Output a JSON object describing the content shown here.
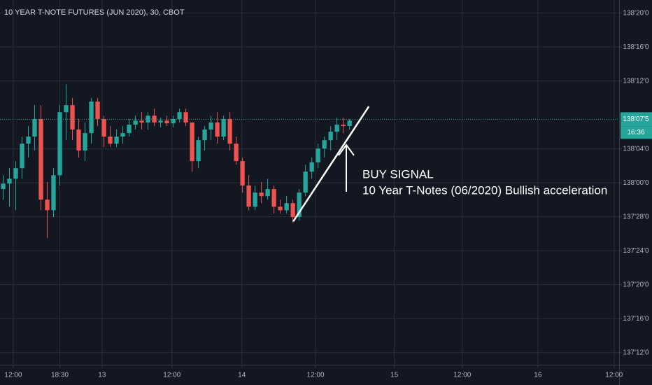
{
  "chart_data": {
    "type": "candlestick",
    "title": "10 YEAR T-NOTE FUTURES (JUN 2020), 30, CBOT",
    "x": [
      0,
      1,
      2,
      3,
      4,
      5,
      6,
      7,
      8,
      9,
      10,
      11,
      12,
      13,
      14,
      15,
      16,
      17,
      18,
      19,
      20,
      21,
      22,
      23,
      24,
      25,
      26,
      27,
      28,
      29,
      30,
      31,
      32,
      33,
      34,
      35,
      36,
      37,
      38,
      39,
      40,
      41,
      42,
      43,
      44,
      45,
      46,
      47,
      48,
      49,
      50,
      51,
      52,
      53,
      54,
      55
    ],
    "open": [
      137.977,
      137.997,
      138.015,
      138.054,
      138.144,
      138.17,
      138.235,
      137.938,
      137.899,
      138.028,
      138.26,
      138.286,
      138.196,
      138.119,
      138.183,
      138.299,
      138.235,
      138.17,
      138.144,
      138.17,
      138.183,
      138.214,
      138.229,
      138.222,
      138.247,
      138.222,
      138.229,
      138.219,
      138.235,
      138.26,
      138.222,
      138.08,
      138.157,
      138.196,
      138.222,
      138.17,
      138.235,
      138.144,
      138.08,
      137.99,
      137.912,
      137.964,
      137.951,
      137.977,
      137.912,
      137.899,
      137.925,
      137.874,
      137.964,
      138.041,
      138.075,
      138.126,
      138.157,
      138.188,
      138.214,
      138.209
    ],
    "high": [
      138.028,
      138.054,
      138.08,
      138.17,
      138.209,
      138.286,
      138.286,
      138.003,
      138.054,
      138.286,
      138.363,
      138.312,
      138.235,
      138.222,
      138.312,
      138.312,
      138.247,
      138.209,
      138.196,
      138.209,
      138.235,
      138.247,
      138.26,
      138.26,
      138.273,
      138.24,
      138.247,
      138.247,
      138.273,
      138.273,
      138.222,
      138.17,
      138.209,
      138.247,
      138.26,
      138.247,
      138.26,
      138.17,
      138.093,
      138.028,
      137.99,
      138.003,
      138.015,
      137.99,
      137.938,
      137.951,
      137.938,
      137.977,
      138.067,
      138.093,
      138.144,
      138.17,
      138.209,
      138.24,
      138.24,
      138.235
    ],
    "low": [
      137.938,
      137.912,
      137.899,
      138.015,
      138.093,
      138.119,
      137.899,
      137.796,
      137.874,
      137.99,
      138.157,
      138.157,
      138.093,
      138.08,
      138.144,
      138.209,
      138.131,
      138.131,
      138.131,
      138.144,
      138.17,
      138.196,
      138.196,
      138.196,
      138.209,
      138.204,
      138.209,
      138.204,
      138.222,
      138.209,
      138.041,
      138.054,
      138.119,
      138.157,
      138.144,
      138.157,
      138.119,
      138.067,
      137.964,
      137.899,
      137.899,
      137.925,
      137.938,
      137.887,
      137.887,
      137.887,
      137.853,
      137.861,
      137.951,
      138.015,
      138.054,
      138.093,
      138.119,
      138.157,
      138.183,
      138.196
    ],
    "close": [
      137.997,
      138.015,
      138.054,
      138.144,
      138.17,
      138.235,
      137.938,
      137.899,
      138.028,
      138.26,
      138.286,
      138.196,
      138.119,
      138.183,
      138.299,
      138.235,
      138.17,
      138.144,
      138.17,
      138.183,
      138.214,
      138.229,
      138.222,
      138.247,
      138.222,
      138.229,
      138.219,
      138.235,
      138.26,
      138.222,
      138.08,
      138.157,
      138.196,
      138.222,
      138.17,
      138.235,
      138.144,
      138.08,
      137.99,
      137.912,
      137.964,
      137.951,
      137.977,
      137.912,
      137.899,
      137.925,
      137.874,
      137.964,
      138.041,
      138.075,
      138.126,
      138.157,
      138.188,
      138.214,
      138.209,
      138.229
    ],
    "up_color": "#26a69a",
    "down_color": "#ef5350",
    "xlim": [
      -0.5,
      97.8
    ],
    "ylim": [
      137.333,
      138.673
    ],
    "xticks": [
      {
        "value": 1.6,
        "label": "12:00"
      },
      {
        "value": 9,
        "label": "18:30"
      },
      {
        "value": 15.7,
        "label": "13"
      },
      {
        "value": 26.8,
        "label": "12:00"
      },
      {
        "value": 37.9,
        "label": "14"
      },
      {
        "value": 49.6,
        "label": "12:00"
      },
      {
        "value": 62.1,
        "label": "15"
      },
      {
        "value": 72.9,
        "label": "12:00"
      },
      {
        "value": 84.9,
        "label": "16"
      },
      {
        "value": 97,
        "label": "12:00"
      }
    ],
    "yticks": [
      {
        "value": 138.625,
        "label": "138'20'0"
      },
      {
        "value": 138.5,
        "label": "138'16'0"
      },
      {
        "value": 138.375,
        "label": "138'12'0"
      },
      {
        "value": 138.125,
        "label": "138'04'0"
      },
      {
        "value": 138,
        "label": "138'00'0"
      },
      {
        "value": 137.875,
        "label": "137'28'0"
      },
      {
        "value": 137.75,
        "label": "137'24'0"
      },
      {
        "value": 137.625,
        "label": "137'20'0"
      },
      {
        "value": 137.5,
        "label": "137'16'0"
      },
      {
        "value": 137.375,
        "label": "137'12'0"
      }
    ],
    "grid": true,
    "last_price": {
      "value": 138.234,
      "label": "138'07'5"
    },
    "countdown": "16:36",
    "trendline": {
      "x": [
        46.06,
        58.06
      ],
      "y": [
        137.858,
        138.281
      ]
    },
    "annotations": [
      "BUY SIGNAL",
      "10 Year T-Notes (06/2020) Bullish acceleration"
    ]
  }
}
